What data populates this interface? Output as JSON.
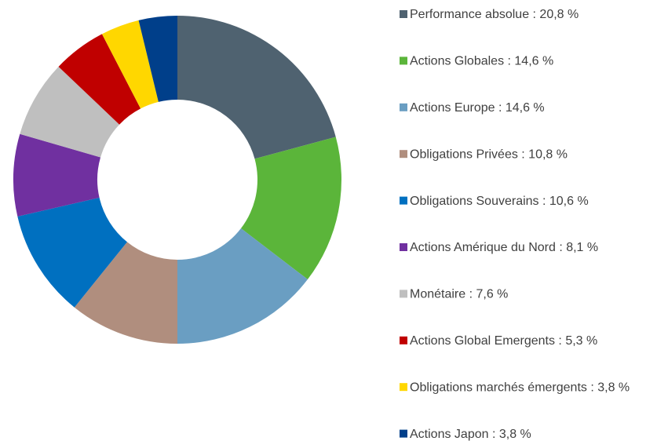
{
  "chart_data": {
    "type": "donut",
    "categories": [
      "Performance absolue : 20,8 %",
      "Actions Globales : 14,6 %",
      "Actions Europe : 14,6 %",
      "Obligations Privées : 10,8 %",
      "Obligations Souverains : 10,6 %",
      "Actions Amérique du Nord : 8,1 %",
      "Monétaire : 7,6 %",
      "Actions Global Emergents : 5,3 %",
      "Obligations marchés émergents : 3,8 %",
      "Actions Japon : 3,8 %"
    ],
    "values": [
      20.8,
      14.6,
      14.6,
      10.8,
      10.6,
      8.1,
      7.6,
      5.3,
      3.8,
      3.8
    ],
    "colors": [
      "#4f6270",
      "#5bb53a",
      "#6a9ec2",
      "#b08e7e",
      "#0070c0",
      "#7030a0",
      "#bfbfbf",
      "#c00000",
      "#ffd700",
      "#003f8a"
    ],
    "legend": "right"
  }
}
